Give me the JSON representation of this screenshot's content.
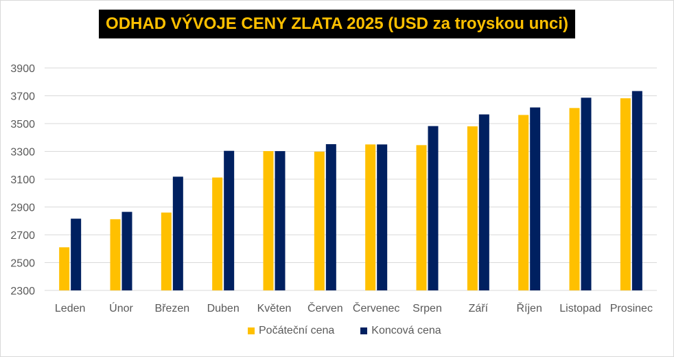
{
  "title": "ODHAD VÝVOJE CENY ZLATA 2025 (USD za troyskou unci)",
  "colors": {
    "start": "#ffc000",
    "end": "#002060",
    "title_bg": "#000000",
    "title_fg": "#ffc000",
    "grid": "#d9d9d9",
    "text": "#595959"
  },
  "chart_data": {
    "type": "bar",
    "title": "ODHAD VÝVOJE CENY ZLATA 2025 (USD za troyskou unci)",
    "categories": [
      "Leden",
      "Únor",
      "Březen",
      "Duben",
      "Květen",
      "Červen",
      "Červenec",
      "Srpen",
      "Září",
      "Říjen",
      "Listopad",
      "Prosinec"
    ],
    "series": [
      {
        "name": "Počáteční cena",
        "values": [
          2610,
          2812,
          2860,
          3112,
          3302,
          3298,
          3350,
          3345,
          3480,
          3562,
          3612,
          3682
        ]
      },
      {
        "name": "Koncová cena",
        "values": [
          2816,
          2865,
          3118,
          3304,
          3302,
          3352,
          3350,
          3482,
          3566,
          3616,
          3686,
          3734
        ]
      }
    ],
    "ylim": [
      2300,
      3900
    ],
    "yticks": [
      2300,
      2500,
      2700,
      2900,
      3100,
      3300,
      3500,
      3700,
      3900
    ],
    "grid": true,
    "legend": "bottom"
  }
}
